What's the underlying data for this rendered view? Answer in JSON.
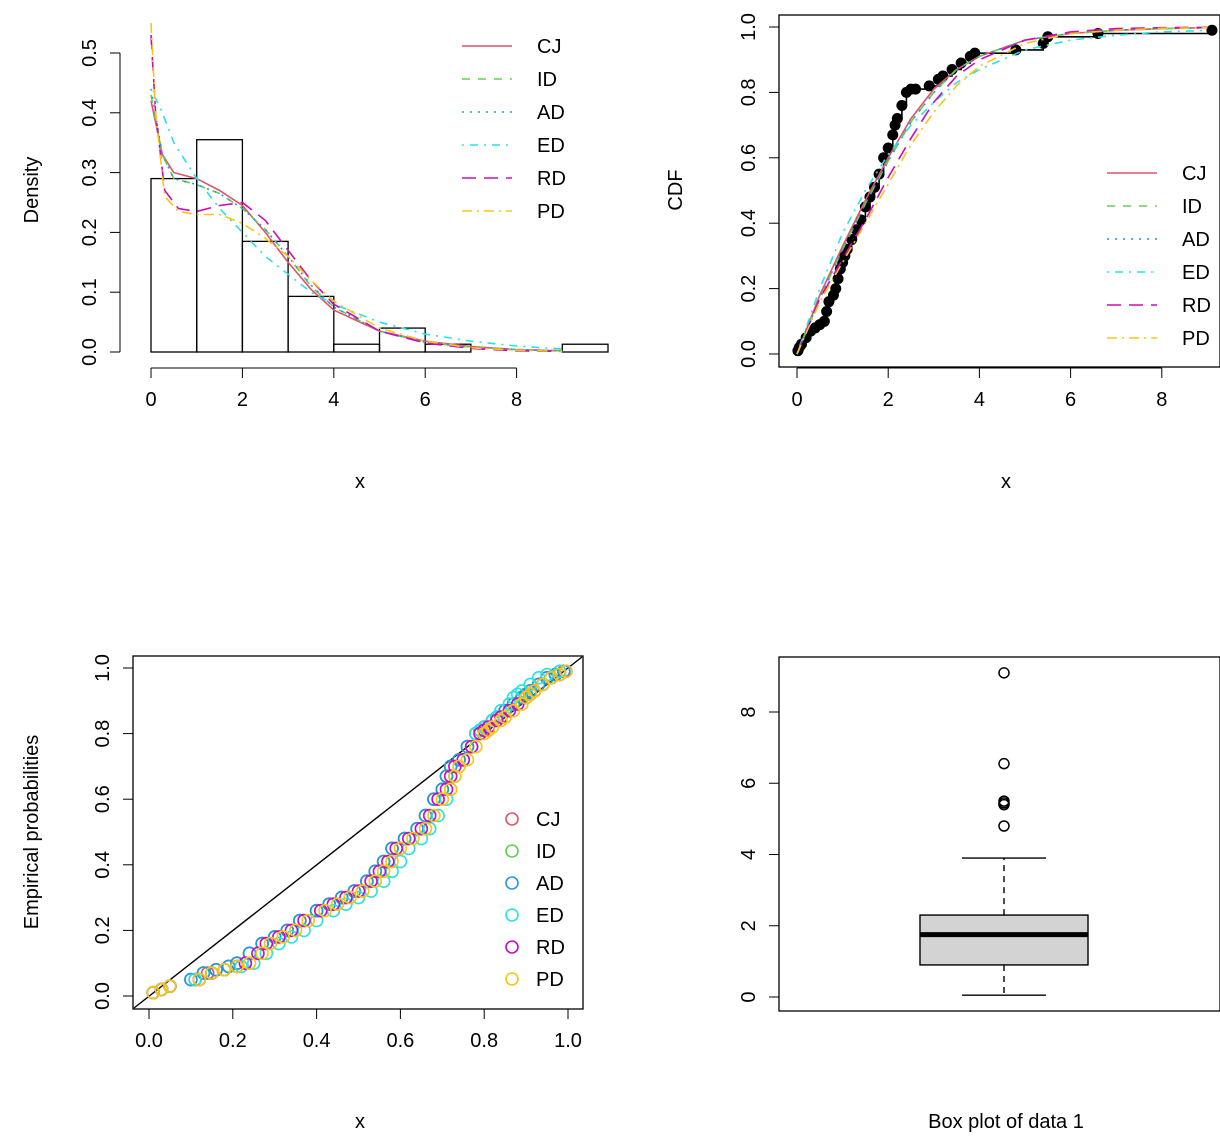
{
  "chart_data": [
    {
      "type": "histogram",
      "xlabel": "x",
      "ylabel": "Density",
      "xticks": [
        0,
        2,
        4,
        6,
        8
      ],
      "yticks": [
        0.0,
        0.1,
        0.2,
        0.3,
        0.4,
        0.5
      ],
      "xlim": [
        0,
        9.5
      ],
      "ylim": [
        0,
        0.55
      ],
      "bins": [
        {
          "from": 0,
          "to": 1,
          "density": 0.29
        },
        {
          "from": 1,
          "to": 2,
          "density": 0.355
        },
        {
          "from": 2,
          "to": 3,
          "density": 0.185
        },
        {
          "from": 3,
          "to": 4,
          "density": 0.093
        },
        {
          "from": 4,
          "to": 5,
          "density": 0.013
        },
        {
          "from": 5,
          "to": 6,
          "density": 0.04
        },
        {
          "from": 6,
          "to": 7,
          "density": 0.013
        },
        {
          "from": 7,
          "to": 8,
          "density": 0.0
        },
        {
          "from": 8,
          "to": 9,
          "density": 0.0
        },
        {
          "from": 9,
          "to": 10,
          "density": 0.013
        }
      ],
      "legend_position": "top-right",
      "series": [
        {
          "name": "CJ",
          "color": "#DF536B",
          "x": [
            0,
            0.25,
            0.5,
            1,
            1.5,
            2,
            2.5,
            3,
            3.5,
            4,
            5,
            6,
            7,
            8,
            9
          ],
          "values": [
            0.42,
            0.33,
            0.3,
            0.29,
            0.27,
            0.245,
            0.2,
            0.15,
            0.105,
            0.07,
            0.035,
            0.018,
            0.009,
            0.004,
            0.002
          ]
        },
        {
          "name": "ID",
          "color": "#61D04F",
          "x": [
            0,
            0.25,
            0.5,
            1,
            1.5,
            2,
            2.5,
            3,
            3.5,
            4,
            5,
            6,
            7,
            8,
            9
          ],
          "values": [
            0.43,
            0.33,
            0.29,
            0.28,
            0.265,
            0.24,
            0.205,
            0.16,
            0.11,
            0.075,
            0.035,
            0.016,
            0.008,
            0.004,
            0.002
          ]
        },
        {
          "name": "AD",
          "color": "#2297E6",
          "x": [
            0,
            0.25,
            0.5,
            1,
            1.5,
            2,
            2.5,
            3,
            3.5,
            4,
            5,
            6,
            7,
            8,
            9
          ],
          "values": [
            0.44,
            0.33,
            0.29,
            0.28,
            0.265,
            0.24,
            0.205,
            0.16,
            0.112,
            0.075,
            0.035,
            0.016,
            0.008,
            0.004,
            0.002
          ]
        },
        {
          "name": "ED",
          "color": "#28E2E5",
          "x": [
            0,
            0.25,
            0.5,
            1,
            1.5,
            2,
            2.5,
            3,
            3.5,
            4,
            5,
            6,
            7,
            8,
            9
          ],
          "values": [
            0.44,
            0.4,
            0.35,
            0.29,
            0.24,
            0.2,
            0.16,
            0.13,
            0.1,
            0.08,
            0.05,
            0.03,
            0.018,
            0.01,
            0.005
          ]
        },
        {
          "name": "RD",
          "color": "#CD0BBC",
          "x": [
            0,
            0.1,
            0.3,
            0.6,
            1,
            1.5,
            2,
            2.5,
            3,
            3.5,
            4,
            5,
            6,
            7,
            8,
            9
          ],
          "values": [
            0.53,
            0.4,
            0.27,
            0.24,
            0.235,
            0.245,
            0.25,
            0.22,
            0.17,
            0.12,
            0.08,
            0.035,
            0.015,
            0.006,
            0.002,
            0.001
          ]
        },
        {
          "name": "PD",
          "color": "#F5C710",
          "x": [
            0,
            0.1,
            0.3,
            0.6,
            1,
            1.5,
            2,
            2.5,
            3,
            3.5,
            4,
            5,
            6,
            7,
            8,
            9
          ],
          "values": [
            0.55,
            0.4,
            0.26,
            0.235,
            0.23,
            0.23,
            0.215,
            0.19,
            0.16,
            0.12,
            0.085,
            0.04,
            0.018,
            0.007,
            0.003,
            0.001
          ]
        }
      ]
    },
    {
      "type": "line",
      "xlabel": "x",
      "ylabel": "CDF",
      "xticks": [
        0,
        2,
        4,
        6,
        8
      ],
      "yticks": [
        0.0,
        0.2,
        0.4,
        0.6,
        0.8,
        1.0
      ],
      "xlim": [
        0,
        9
      ],
      "ylim": [
        0,
        1
      ],
      "legend_position": "right",
      "empirical_points": [
        [
          0.02,
          0.01
        ],
        [
          0.05,
          0.02
        ],
        [
          0.1,
          0.03
        ],
        [
          0.2,
          0.05
        ],
        [
          0.3,
          0.07
        ],
        [
          0.4,
          0.08
        ],
        [
          0.5,
          0.09
        ],
        [
          0.6,
          0.1
        ],
        [
          0.65,
          0.13
        ],
        [
          0.7,
          0.16
        ],
        [
          0.8,
          0.18
        ],
        [
          0.85,
          0.2
        ],
        [
          0.9,
          0.23
        ],
        [
          0.95,
          0.26
        ],
        [
          1.0,
          0.28
        ],
        [
          1.05,
          0.3
        ],
        [
          1.1,
          0.32
        ],
        [
          1.2,
          0.35
        ],
        [
          1.3,
          0.38
        ],
        [
          1.4,
          0.41
        ],
        [
          1.5,
          0.45
        ],
        [
          1.6,
          0.48
        ],
        [
          1.7,
          0.51
        ],
        [
          1.8,
          0.55
        ],
        [
          1.9,
          0.6
        ],
        [
          2.0,
          0.63
        ],
        [
          2.1,
          0.67
        ],
        [
          2.15,
          0.7
        ],
        [
          2.2,
          0.72
        ],
        [
          2.3,
          0.76
        ],
        [
          2.4,
          0.8
        ],
        [
          2.5,
          0.81
        ],
        [
          2.6,
          0.81
        ],
        [
          2.9,
          0.82
        ],
        [
          3.1,
          0.84
        ],
        [
          3.2,
          0.85
        ],
        [
          3.4,
          0.87
        ],
        [
          3.6,
          0.89
        ],
        [
          3.8,
          0.91
        ],
        [
          3.9,
          0.92
        ],
        [
          4.8,
          0.93
        ],
        [
          5.4,
          0.95
        ],
        [
          5.5,
          0.97
        ],
        [
          6.6,
          0.98
        ],
        [
          9.1,
          0.99
        ]
      ],
      "series": [
        {
          "name": "CJ",
          "color": "#DF536B",
          "x": [
            0,
            0.5,
            1,
            1.5,
            2,
            2.5,
            3,
            3.5,
            4,
            5,
            6,
            7,
            8,
            9
          ],
          "values": [
            0.0,
            0.18,
            0.33,
            0.47,
            0.6,
            0.72,
            0.81,
            0.87,
            0.91,
            0.96,
            0.98,
            0.99,
            0.995,
            0.998
          ]
        },
        {
          "name": "ID",
          "color": "#61D04F",
          "x": [
            0,
            0.5,
            1,
            1.5,
            2,
            2.5,
            3,
            3.5,
            4,
            5,
            6,
            7,
            8,
            9
          ],
          "values": [
            0.0,
            0.17,
            0.32,
            0.46,
            0.59,
            0.71,
            0.8,
            0.87,
            0.91,
            0.96,
            0.98,
            0.99,
            0.995,
            0.998
          ]
        },
        {
          "name": "AD",
          "color": "#2297E6",
          "x": [
            0,
            0.5,
            1,
            1.5,
            2,
            2.5,
            3,
            3.5,
            4,
            5,
            6,
            7,
            8,
            9
          ],
          "values": [
            0.0,
            0.17,
            0.32,
            0.46,
            0.59,
            0.71,
            0.8,
            0.87,
            0.91,
            0.96,
            0.98,
            0.99,
            0.995,
            0.998
          ]
        },
        {
          "name": "ED",
          "color": "#28E2E5",
          "x": [
            0,
            0.5,
            1,
            1.5,
            2,
            2.5,
            3,
            3.5,
            4,
            5,
            6,
            7,
            8,
            9
          ],
          "values": [
            0.0,
            0.2,
            0.37,
            0.5,
            0.61,
            0.7,
            0.77,
            0.83,
            0.87,
            0.93,
            0.96,
            0.975,
            0.985,
            0.99
          ]
        },
        {
          "name": "RD",
          "color": "#CD0BBC",
          "x": [
            0,
            0.5,
            1,
            1.5,
            2,
            2.5,
            3,
            3.5,
            4,
            5,
            6,
            7,
            8,
            9
          ],
          "values": [
            0.0,
            0.17,
            0.29,
            0.41,
            0.54,
            0.66,
            0.77,
            0.85,
            0.9,
            0.96,
            0.985,
            0.995,
            0.998,
            0.999
          ]
        },
        {
          "name": "PD",
          "color": "#F5C710",
          "x": [
            0,
            0.5,
            1,
            1.5,
            2,
            2.5,
            3,
            3.5,
            4,
            5,
            6,
            7,
            8,
            9
          ],
          "values": [
            0.0,
            0.16,
            0.28,
            0.4,
            0.52,
            0.64,
            0.74,
            0.82,
            0.88,
            0.95,
            0.98,
            0.99,
            0.996,
            0.998
          ]
        }
      ]
    },
    {
      "type": "scatter",
      "xlabel": "x",
      "ylabel": "Empirical probabilities",
      "xticks": [
        0.0,
        0.2,
        0.4,
        0.6,
        0.8,
        1.0
      ],
      "yticks": [
        0.0,
        0.2,
        0.4,
        0.6,
        0.8,
        1.0
      ],
      "xlim": [
        0,
        1
      ],
      "ylim": [
        0,
        1
      ],
      "reference_line": [
        [
          0,
          0
        ],
        [
          1,
          1
        ]
      ],
      "legend_position": "right",
      "empirical_probabilities": [
        0.01,
        0.02,
        0.03,
        0.05,
        0.07,
        0.08,
        0.09,
        0.1,
        0.13,
        0.16,
        0.18,
        0.2,
        0.23,
        0.26,
        0.28,
        0.3,
        0.32,
        0.35,
        0.38,
        0.41,
        0.45,
        0.48,
        0.51,
        0.55,
        0.6,
        0.63,
        0.67,
        0.7,
        0.72,
        0.76,
        0.8,
        0.81,
        0.82,
        0.84,
        0.85,
        0.87,
        0.89,
        0.91,
        0.92,
        0.93,
        0.95,
        0.97,
        0.98,
        0.99
      ],
      "series": [
        {
          "name": "CJ",
          "color": "#DF536B",
          "x": [
            0.01,
            0.03,
            0.05,
            0.11,
            0.14,
            0.16,
            0.19,
            0.21,
            0.24,
            0.27,
            0.3,
            0.33,
            0.36,
            0.4,
            0.43,
            0.46,
            0.49,
            0.52,
            0.54,
            0.56,
            0.58,
            0.61,
            0.64,
            0.66,
            0.68,
            0.7,
            0.71,
            0.72,
            0.74,
            0.76,
            0.78,
            0.79,
            0.8,
            0.82,
            0.83,
            0.85,
            0.87,
            0.89,
            0.9,
            0.91,
            0.93,
            0.95,
            0.97,
            0.99
          ]
        },
        {
          "name": "ID",
          "color": "#61D04F",
          "x": [
            0.01,
            0.03,
            0.05,
            0.1,
            0.13,
            0.16,
            0.19,
            0.21,
            0.24,
            0.27,
            0.3,
            0.33,
            0.36,
            0.4,
            0.43,
            0.46,
            0.49,
            0.52,
            0.54,
            0.56,
            0.58,
            0.61,
            0.64,
            0.66,
            0.68,
            0.7,
            0.71,
            0.72,
            0.74,
            0.76,
            0.78,
            0.79,
            0.8,
            0.82,
            0.83,
            0.85,
            0.87,
            0.89,
            0.9,
            0.91,
            0.93,
            0.95,
            0.97,
            0.99
          ]
        },
        {
          "name": "AD",
          "color": "#2297E6",
          "x": [
            0.01,
            0.03,
            0.05,
            0.1,
            0.13,
            0.16,
            0.19,
            0.21,
            0.24,
            0.27,
            0.3,
            0.33,
            0.36,
            0.4,
            0.43,
            0.46,
            0.49,
            0.52,
            0.54,
            0.56,
            0.58,
            0.61,
            0.64,
            0.66,
            0.68,
            0.7,
            0.71,
            0.72,
            0.74,
            0.76,
            0.78,
            0.79,
            0.8,
            0.82,
            0.83,
            0.85,
            0.87,
            0.89,
            0.9,
            0.91,
            0.93,
            0.95,
            0.97,
            0.99
          ]
        },
        {
          "name": "ED",
          "color": "#28E2E5",
          "x": [
            0.01,
            0.03,
            0.05,
            0.11,
            0.15,
            0.18,
            0.22,
            0.25,
            0.28,
            0.31,
            0.34,
            0.37,
            0.4,
            0.44,
            0.47,
            0.5,
            0.53,
            0.56,
            0.58,
            0.6,
            0.62,
            0.65,
            0.67,
            0.69,
            0.71,
            0.72,
            0.73,
            0.74,
            0.75,
            0.77,
            0.78,
            0.79,
            0.8,
            0.82,
            0.83,
            0.84,
            0.86,
            0.87,
            0.88,
            0.89,
            0.91,
            0.93,
            0.95,
            0.98
          ]
        },
        {
          "name": "RD",
          "color": "#CD0BBC",
          "x": [
            0.01,
            0.03,
            0.05,
            0.12,
            0.15,
            0.18,
            0.21,
            0.23,
            0.26,
            0.28,
            0.31,
            0.34,
            0.37,
            0.41,
            0.44,
            0.47,
            0.5,
            0.53,
            0.55,
            0.57,
            0.59,
            0.62,
            0.65,
            0.67,
            0.69,
            0.71,
            0.72,
            0.73,
            0.75,
            0.77,
            0.79,
            0.8,
            0.81,
            0.83,
            0.84,
            0.86,
            0.88,
            0.9,
            0.91,
            0.92,
            0.94,
            0.96,
            0.98,
            0.995
          ]
        },
        {
          "name": "PD",
          "color": "#F5C710",
          "x": [
            0.01,
            0.03,
            0.05,
            0.12,
            0.15,
            0.18,
            0.21,
            0.24,
            0.27,
            0.29,
            0.32,
            0.35,
            0.38,
            0.42,
            0.45,
            0.48,
            0.51,
            0.54,
            0.56,
            0.58,
            0.6,
            0.63,
            0.66,
            0.68,
            0.7,
            0.72,
            0.73,
            0.74,
            0.76,
            0.78,
            0.8,
            0.81,
            0.82,
            0.84,
            0.85,
            0.87,
            0.89,
            0.9,
            0.91,
            0.92,
            0.94,
            0.96,
            0.98,
            0.995
          ]
        }
      ]
    },
    {
      "type": "boxplot",
      "xlabel": "Box plot of data 1",
      "yticks": [
        0,
        2,
        4,
        6,
        8
      ],
      "ylim": [
        -0.4,
        9.4
      ],
      "box": {
        "min": 0.05,
        "q1": 0.9,
        "median": 1.75,
        "q3": 2.3,
        "whisker_max": 3.9
      },
      "outliers": [
        4.8,
        5.4,
        5.45,
        5.5,
        6.55,
        9.1
      ]
    }
  ]
}
